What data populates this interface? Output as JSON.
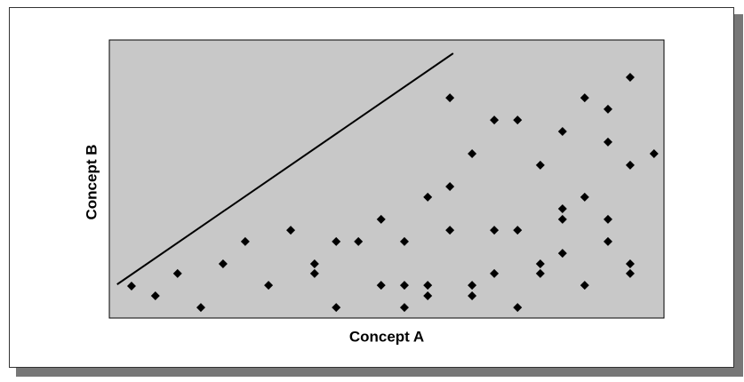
{
  "chart_data": {
    "type": "scatter",
    "xlabel": "Concept A",
    "ylabel": "Concept B",
    "xlim": [
      0,
      100
    ],
    "ylim": [
      0,
      100
    ],
    "color": "#000000",
    "background": "#c8c8c8",
    "x": [
      4.0,
      8.3,
      12.3,
      16.5,
      20.5,
      24.5,
      28.7,
      32.7,
      37.0,
      37.0,
      40.9,
      40.9,
      44.9,
      49.0,
      49.0,
      53.2,
      53.2,
      53.2,
      57.4,
      57.4,
      57.4,
      61.4,
      61.4,
      61.4,
      65.4,
      65.4,
      65.4,
      69.4,
      69.4,
      69.4,
      73.6,
      73.6,
      73.6,
      77.7,
      77.7,
      77.7,
      81.7,
      81.7,
      81.7,
      81.7,
      85.7,
      85.7,
      85.7,
      89.9,
      89.9,
      89.9,
      89.9,
      93.9,
      93.9,
      93.9,
      93.9,
      98.2
    ],
    "values": [
      11.5,
      8.0,
      16.0,
      3.8,
      19.5,
      27.5,
      11.8,
      31.6,
      19.5,
      16.0,
      27.5,
      3.8,
      27.5,
      35.5,
      11.8,
      27.5,
      11.8,
      3.8,
      43.5,
      11.8,
      8.0,
      79.2,
      47.3,
      31.6,
      59.1,
      11.8,
      8.0,
      71.2,
      31.6,
      16.0,
      71.2,
      31.6,
      3.8,
      55.0,
      19.5,
      16.0,
      67.1,
      39.3,
      35.5,
      23.3,
      79.2,
      43.5,
      11.8,
      75.1,
      63.3,
      35.5,
      27.5,
      86.6,
      55.0,
      19.5,
      16.0,
      59.1
    ],
    "reference_line": {
      "x": [
        1.4,
        62.0
      ],
      "y": [
        12.1,
        95.2
      ]
    }
  }
}
